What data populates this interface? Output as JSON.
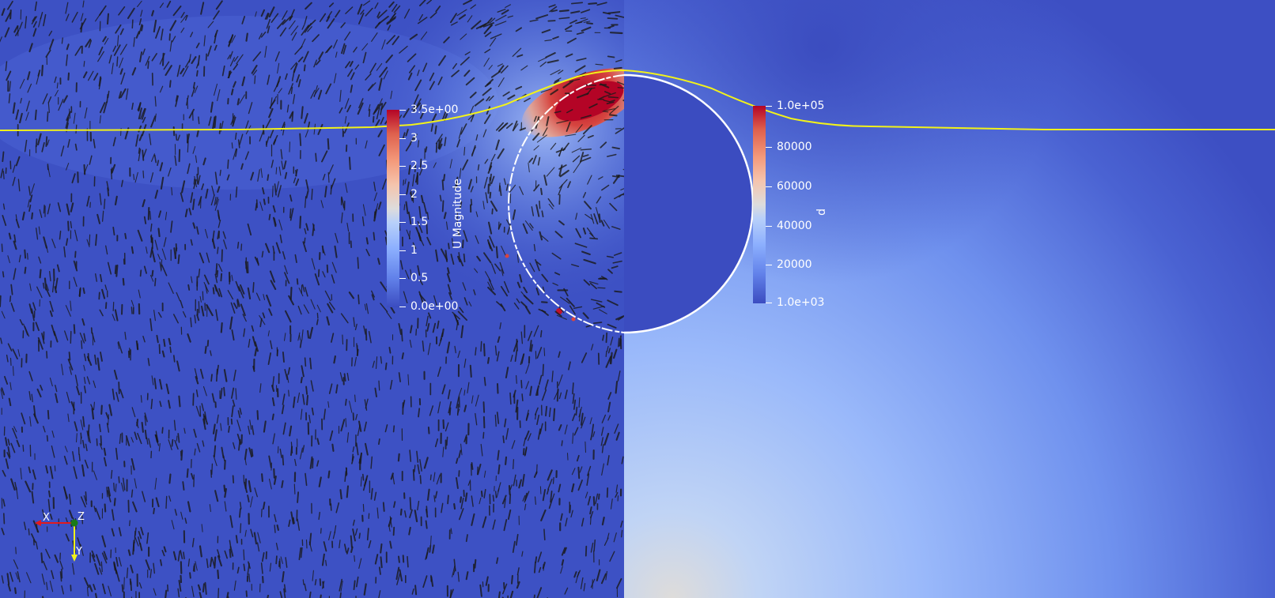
{
  "scene": {
    "left_field": "U Magnitude",
    "right_field": "p"
  },
  "legends": {
    "u_magnitude": {
      "title": "U Magnitude",
      "range": [
        0.0,
        3.5
      ],
      "ticks": [
        "3.5e+00",
        "3",
        "2.5",
        "2",
        "1.5",
        "1",
        "0.5",
        "0.0e+00"
      ]
    },
    "p": {
      "title": "p",
      "range": [
        1000,
        100000
      ],
      "ticks": [
        "1.0e+05",
        "80000",
        "60000",
        "40000",
        "20000",
        "1.0e+03"
      ]
    }
  },
  "axes": {
    "x": "X",
    "y": "Y",
    "z": "Z"
  },
  "colors": {
    "colormap_low": "#3b4cc0",
    "colormap_mid": "#dddcdc",
    "colormap_high": "#b40426",
    "free_surface_line": "#f2f21a",
    "circle_outline": "#ffffff",
    "glyphs": "#1a1a1a",
    "x_axis": "#e31a1c",
    "y_axis": "#f2f21a",
    "z_axis": "#1a7a1a"
  }
}
